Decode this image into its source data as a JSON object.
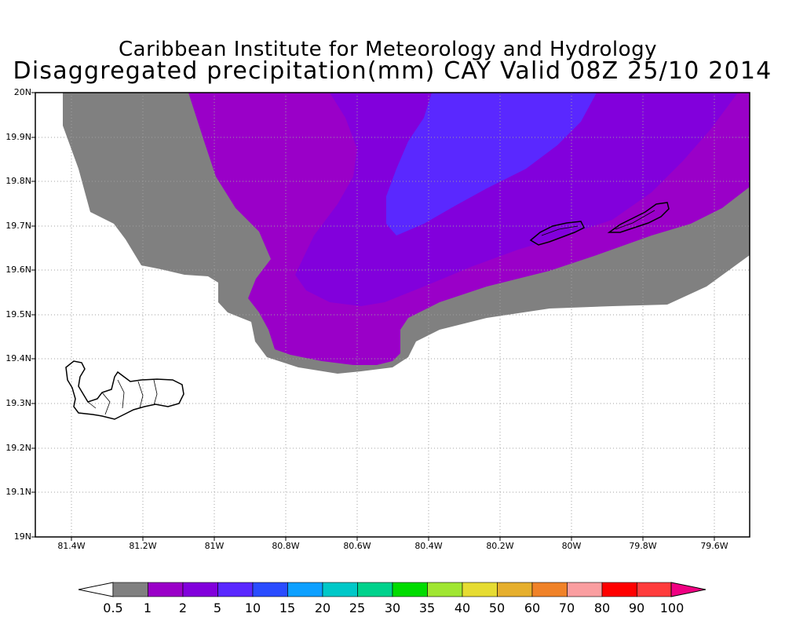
{
  "titles": {
    "line1": "Caribbean Institute for Meteorology and Hydrology",
    "line2": "Disaggregated precipitation(mm) CAY Valid 08Z 25/10 2014"
  },
  "axes": {
    "y_ticks": [
      "20N",
      "19.9N",
      "19.8N",
      "19.7N",
      "19.6N",
      "19.5N",
      "19.4N",
      "19.3N",
      "19.2N",
      "19.1N",
      "19N"
    ],
    "x_ticks": [
      "81.4W",
      "81.2W",
      "81W",
      "80.8W",
      "80.6W",
      "80.4W",
      "80.2W",
      "80W",
      "79.8W",
      "79.6W"
    ]
  },
  "colorbar": {
    "labels": [
      "0.5",
      "1",
      "2",
      "5",
      "10",
      "15",
      "20",
      "25",
      "30",
      "35",
      "40",
      "50",
      "60",
      "70",
      "80",
      "90",
      "100"
    ],
    "colors": [
      "#808080",
      "#9a00c8",
      "#8200dc",
      "#5a28ff",
      "#2a4cff",
      "#0ea0ff",
      "#00c8c8",
      "#00d28c",
      "#00dc00",
      "#a0e632",
      "#e6dc32",
      "#e6af2d",
      "#f08228",
      "#fa9ea0",
      "#ff0000",
      "#ff3c3c",
      "#f00082"
    ]
  }
}
